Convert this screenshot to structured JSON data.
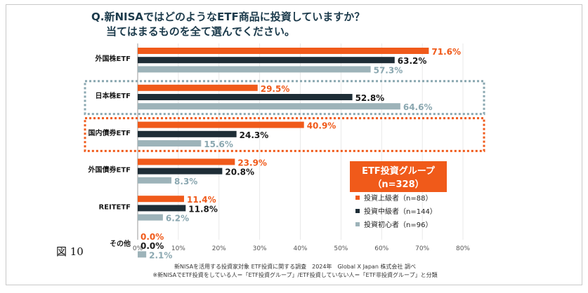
{
  "figure_label": "図 10",
  "chart_data": {
    "type": "bar",
    "orientation": "horizontal",
    "title": "Q.新NISAではどのようなETF商品に投資していますか？",
    "subtitle": "当てはまるものを全て選んでください。",
    "categories": [
      "外国株ETF",
      "日本株ETF",
      "国内債券ETF",
      "外国債券ETF",
      "REITETF",
      "その他"
    ],
    "series": [
      {
        "name": "投資上級者（n=88）",
        "color": "#f05a1a",
        "values": [
          71.6,
          29.5,
          40.9,
          23.9,
          11.4,
          0.0
        ]
      },
      {
        "name": "投資中級者（n=144）",
        "color": "#1e2d36",
        "values": [
          63.2,
          52.8,
          24.3,
          20.8,
          11.8,
          0.0
        ]
      },
      {
        "name": "投資初心者（n=96）",
        "color": "#9db3b9",
        "values": [
          57.3,
          64.6,
          15.6,
          8.3,
          6.2,
          2.1
        ]
      }
    ],
    "value_labels": [
      [
        "71.6%",
        "29.5%",
        "40.9%",
        "23.9%",
        "11.4%",
        "0.0%"
      ],
      [
        "63.2%",
        "52.8%",
        "24.3%",
        "20.8%",
        "11.8%",
        "0.0%"
      ],
      [
        "57.3%",
        "64.6%",
        "15.6%",
        "8.3%",
        "6.2%",
        "2.1%"
      ]
    ],
    "xlim": [
      0,
      80
    ],
    "xticks": [
      "0%",
      "10%",
      "20%",
      "30%",
      "40%",
      "50%",
      "60%",
      "70%",
      "80%"
    ],
    "highlighted_categories": [
      {
        "category": "日本株ETF",
        "color": "#8aa7b0"
      },
      {
        "category": "国内債券ETF",
        "color": "#f05a1a"
      }
    ],
    "legend": {
      "title_line1": "ETF投資グループ",
      "title_line2": "（n=328）",
      "title_bg": "#f05a1a"
    },
    "footnote_1": "新NISAを活用する投資家対象 ETF投資に関する調査　2024年　Global X Japan 株式会社 調べ",
    "footnote_2": "※新NISAでETF投資をしている人＝「ETF投資グループ」/ETF投資していない人＝「ETF非投資グループ」と分類"
  }
}
